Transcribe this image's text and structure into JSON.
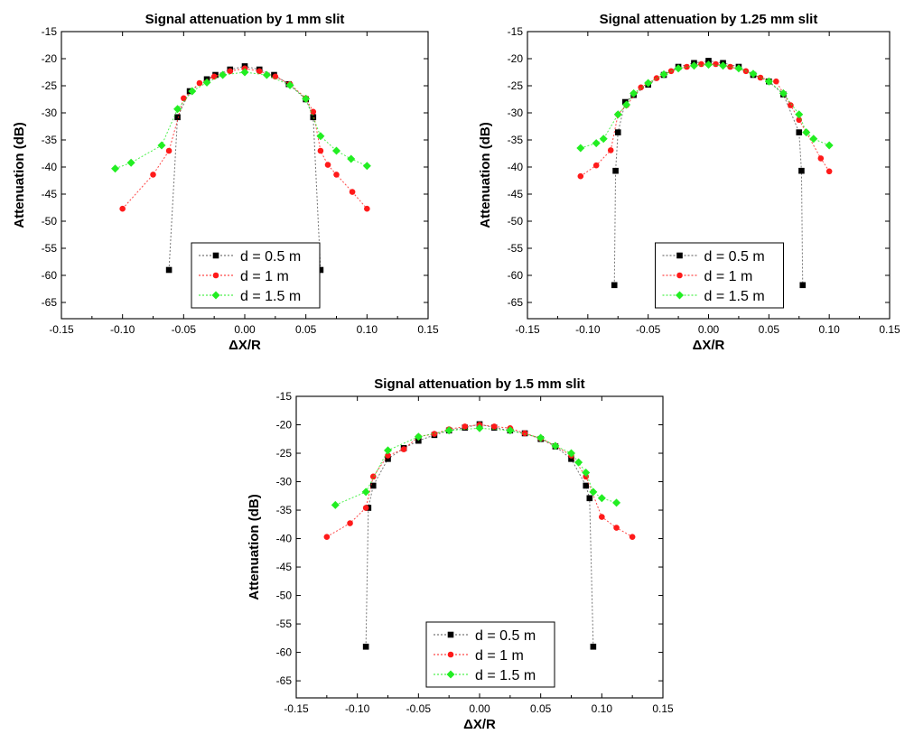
{
  "chart_data": [
    {
      "type": "scatter",
      "title": "Signal attenuation by 1 mm slit",
      "xlabel": "ΔX/R",
      "ylabel": "Attenuation (dB)",
      "xlim": [
        -0.15,
        0.15
      ],
      "ylim": [
        -68,
        -15
      ],
      "x_ticks": [
        "-0.15",
        "-0.10",
        "-0.05",
        "0.00",
        "0.05",
        "0.10",
        "0.15"
      ],
      "y_ticks": [
        "-15",
        "-20",
        "-25",
        "-30",
        "-35",
        "-40",
        "-45",
        "-50",
        "-55",
        "-60",
        "-65"
      ],
      "legend_position": "bottom-center",
      "series": [
        {
          "name": "d = 0.5 m",
          "color": "#000000",
          "marker": "square",
          "x": [
            -0.062,
            -0.055,
            -0.045,
            -0.031,
            -0.024,
            -0.012,
            0.0,
            0.012,
            0.024,
            0.036,
            0.05,
            0.056,
            0.062
          ],
          "y": [
            -59.0,
            -30.8,
            -26.0,
            -23.8,
            -23.0,
            -22.0,
            -21.4,
            -22.0,
            -23.0,
            -24.7,
            -27.5,
            -30.8,
            -59.0
          ]
        },
        {
          "name": "d = 1 m",
          "color": "#ff1a1a",
          "marker": "circle",
          "x": [
            -0.1,
            -0.075,
            -0.062,
            -0.05,
            -0.037,
            -0.025,
            -0.012,
            0.0,
            0.012,
            0.025,
            0.037,
            0.05,
            0.056,
            0.062,
            0.068,
            0.075,
            0.088,
            0.1
          ],
          "y": [
            -47.7,
            -41.4,
            -37.0,
            -27.3,
            -24.5,
            -23.3,
            -22.3,
            -21.8,
            -22.3,
            -23.3,
            -24.7,
            -27.3,
            -29.8,
            -37.0,
            -39.6,
            -41.4,
            -44.6,
            -47.7
          ]
        },
        {
          "name": "d = 1.5 m",
          "color": "#22ee22",
          "marker": "diamond",
          "x": [
            -0.106,
            -0.093,
            -0.068,
            -0.055,
            -0.043,
            -0.031,
            -0.018,
            0.0,
            0.018,
            0.037,
            0.05,
            0.062,
            0.075,
            0.087,
            0.1
          ],
          "y": [
            -40.3,
            -39.2,
            -36.0,
            -29.3,
            -26.0,
            -24.4,
            -23.0,
            -22.5,
            -23.0,
            -24.9,
            -27.4,
            -34.3,
            -37.0,
            -38.5,
            -39.8
          ]
        }
      ]
    },
    {
      "type": "scatter",
      "title": "Signal attenuation by 1.25 mm slit",
      "xlabel": "ΔX/R",
      "ylabel": "Attenuation (dB)",
      "xlim": [
        -0.15,
        0.15
      ],
      "ylim": [
        -68,
        -15
      ],
      "x_ticks": [
        "-0.15",
        "-0.10",
        "-0.05",
        "0.00",
        "0.05",
        "0.10",
        "0.15"
      ],
      "y_ticks": [
        "-15",
        "-20",
        "-25",
        "-30",
        "-35",
        "-40",
        "-45",
        "-50",
        "-55",
        "-60",
        "-65"
      ],
      "legend_position": "bottom-center",
      "series": [
        {
          "name": "d = 0.5 m",
          "color": "#000000",
          "marker": "square",
          "x": [
            -0.078,
            -0.077,
            -0.075,
            -0.069,
            -0.062,
            -0.05,
            -0.037,
            -0.025,
            -0.012,
            0.0,
            0.012,
            0.025,
            0.037,
            0.05,
            0.062,
            0.075,
            0.077,
            0.078
          ],
          "y": [
            -61.8,
            -40.7,
            -33.6,
            -28.0,
            -26.7,
            -24.8,
            -23.0,
            -21.5,
            -20.8,
            -20.4,
            -20.8,
            -21.5,
            -23.0,
            -24.2,
            -26.6,
            -33.6,
            -40.7,
            -61.8
          ]
        },
        {
          "name": "d = 1 m",
          "color": "#ff1a1a",
          "marker": "circle",
          "x": [
            -0.106,
            -0.093,
            -0.081,
            -0.075,
            -0.068,
            -0.056,
            -0.043,
            -0.031,
            -0.018,
            -0.006,
            0.006,
            0.018,
            0.031,
            0.043,
            0.056,
            0.068,
            0.075,
            0.081,
            0.093,
            0.1
          ],
          "y": [
            -41.7,
            -39.7,
            -36.9,
            -30.3,
            -28.6,
            -25.3,
            -23.6,
            -22.3,
            -21.5,
            -21.0,
            -21.0,
            -21.5,
            -22.3,
            -23.5,
            -24.2,
            -28.6,
            -31.3,
            -33.6,
            -38.4,
            -40.8
          ]
        },
        {
          "name": "d = 1.5 m",
          "color": "#22ee22",
          "marker": "diamond",
          "x": [
            -0.106,
            -0.093,
            -0.087,
            -0.075,
            -0.068,
            -0.062,
            -0.05,
            -0.037,
            -0.025,
            -0.012,
            0.0,
            0.012,
            0.025,
            0.037,
            0.05,
            0.062,
            0.075,
            0.081,
            0.087,
            0.1
          ],
          "y": [
            -36.5,
            -35.6,
            -34.8,
            -30.3,
            -28.5,
            -26.4,
            -24.5,
            -22.9,
            -21.8,
            -21.3,
            -21.1,
            -21.3,
            -21.8,
            -22.8,
            -24.2,
            -26.4,
            -30.3,
            -33.6,
            -34.8,
            -36.0
          ]
        }
      ]
    },
    {
      "type": "scatter",
      "title": "Signal attenuation by 1.5 mm slit",
      "xlabel": "ΔX/R",
      "ylabel": "Attenuation (dB)",
      "xlim": [
        -0.15,
        0.15
      ],
      "ylim": [
        -68,
        -15
      ],
      "x_ticks": [
        "-0.15",
        "-0.10",
        "-0.05",
        "0.00",
        "0.05",
        "0.10",
        "0.15"
      ],
      "y_ticks": [
        "-15",
        "-20",
        "-25",
        "-30",
        "-35",
        "-40",
        "-45",
        "-50",
        "-55",
        "-60",
        "-65"
      ],
      "legend_position": "bottom-center",
      "series": [
        {
          "name": "d = 0.5 m",
          "color": "#000000",
          "marker": "square",
          "x": [
            -0.093,
            -0.091,
            -0.087,
            -0.075,
            -0.062,
            -0.05,
            -0.037,
            -0.025,
            -0.012,
            0.0,
            0.012,
            0.025,
            0.037,
            0.05,
            0.062,
            0.075,
            0.087,
            0.09,
            0.093
          ],
          "y": [
            -59.0,
            -34.6,
            -30.7,
            -26.0,
            -24.1,
            -22.8,
            -21.8,
            -21.0,
            -20.5,
            -19.9,
            -20.5,
            -21.0,
            -21.5,
            -22.5,
            -23.8,
            -26.0,
            -30.7,
            -32.9,
            -59.0
          ]
        },
        {
          "name": "d = 1 m",
          "color": "#ff1a1a",
          "marker": "circle",
          "x": [
            -0.125,
            -0.106,
            -0.093,
            -0.087,
            -0.075,
            -0.062,
            -0.05,
            -0.037,
            -0.025,
            -0.012,
            0.0,
            0.012,
            0.025,
            0.037,
            0.05,
            0.062,
            0.075,
            0.087,
            0.1,
            0.112,
            0.125
          ],
          "y": [
            -39.7,
            -37.3,
            -34.6,
            -29.1,
            -25.4,
            -24.3,
            -22.1,
            -21.6,
            -20.8,
            -20.3,
            -20.0,
            -20.3,
            -20.6,
            -21.5,
            -22.4,
            -23.7,
            -25.4,
            -29.1,
            -36.2,
            -38.1,
            -39.7
          ]
        },
        {
          "name": "d = 1.5 m",
          "color": "#22ee22",
          "marker": "diamond",
          "x": [
            -0.118,
            -0.093,
            -0.075,
            -0.05,
            -0.025,
            0.0,
            0.025,
            0.05,
            0.062,
            0.075,
            0.081,
            0.087,
            0.093,
            0.1,
            0.112
          ],
          "y": [
            -34.1,
            -31.8,
            -24.5,
            -22.1,
            -21.0,
            -20.6,
            -21.0,
            -22.3,
            -23.7,
            -25.0,
            -26.6,
            -28.4,
            -31.8,
            -32.9,
            -33.7
          ]
        }
      ]
    }
  ]
}
